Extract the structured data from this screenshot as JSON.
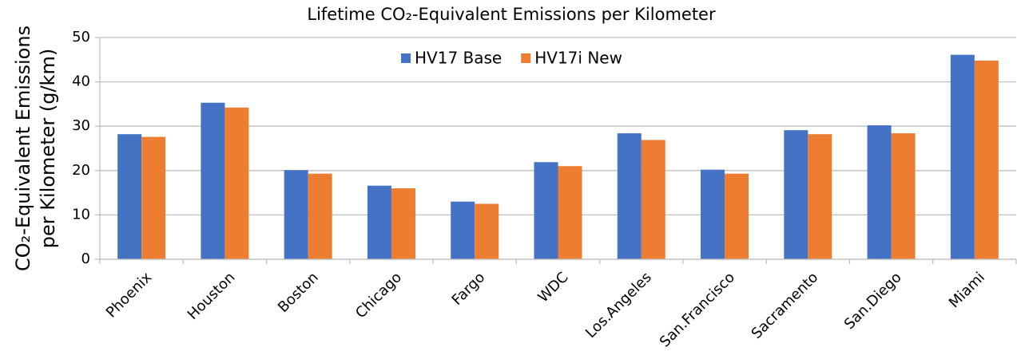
{
  "chart_data": {
    "type": "bar",
    "title": "Lifetime CO₂-Equivalent Emissions per Kilometer",
    "y_label": [
      "CO₂-Equivalent Emissions",
      "per Kilometer (g/km)"
    ],
    "categories": [
      "Phoenix",
      "Houston",
      "Boston",
      "Chicago",
      "Fargo",
      "WDC",
      "Los.Angeles",
      "San.Francisco",
      "Sacramento",
      "San.Diego",
      "Miami"
    ],
    "series": [
      {
        "name": "HV17 Base",
        "color": "#4472c4",
        "values": [
          28.2,
          35.3,
          20.1,
          16.6,
          13.0,
          21.9,
          28.4,
          20.2,
          29.1,
          30.2,
          46.1
        ]
      },
      {
        "name": "HV17i New",
        "color": "#ed7d31",
        "values": [
          27.6,
          34.2,
          19.3,
          16.0,
          12.5,
          21.0,
          26.9,
          19.3,
          28.2,
          28.4,
          44.8
        ]
      }
    ],
    "ylim": [
      0,
      50
    ],
    "yticks": [
      0,
      10,
      20,
      30,
      40,
      50
    ],
    "grid": true,
    "legend": "top"
  }
}
